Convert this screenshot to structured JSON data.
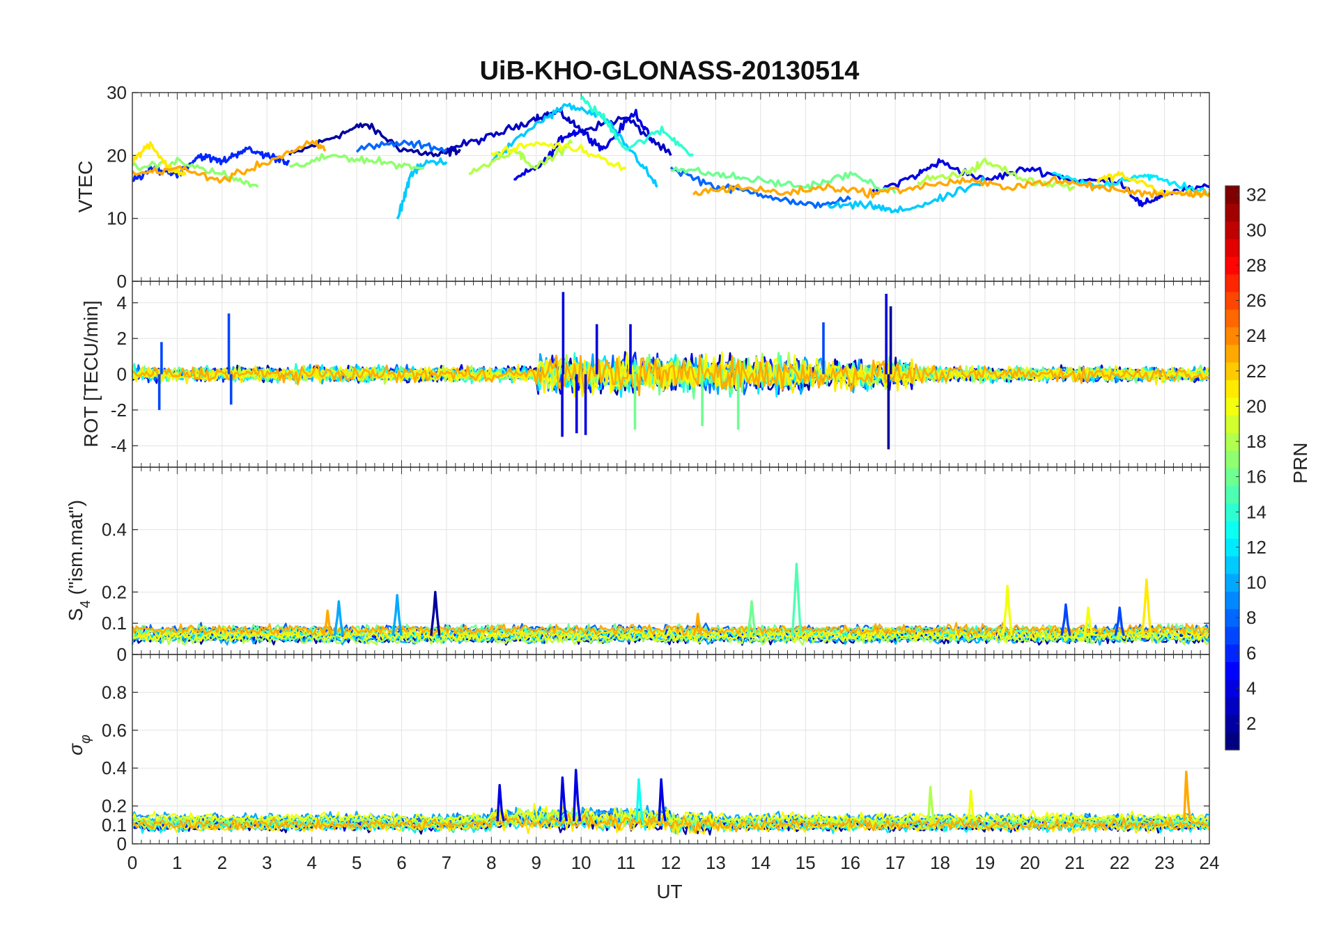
{
  "title": "UiB-KHO-GLONASS-20130514",
  "chart_data": [
    {
      "type": "line",
      "panel": "vtec",
      "ylabel": "VTEC",
      "ylim": [
        0,
        30
      ],
      "yticks": [
        0,
        10,
        20,
        30
      ],
      "ytick_labels": [
        "0",
        "10",
        "20",
        "30"
      ],
      "xlim": [
        0,
        24
      ],
      "grid": true,
      "series": [
        {
          "prn": 2,
          "x": [
            3.5,
            4.5,
            5.2,
            6.0,
            6.8,
            7.3
          ],
          "y": [
            20,
            23,
            25,
            21,
            20,
            21
          ]
        },
        {
          "prn": 3,
          "x": [
            7.0,
            8.0,
            9.0,
            9.5,
            10.0,
            11.0,
            12.0
          ],
          "y": [
            21,
            23,
            26,
            27,
            24,
            26,
            20
          ]
        },
        {
          "prn": 4,
          "x": [
            8.5,
            9.2,
            9.6,
            10.0,
            10.5,
            11.2,
            11.6
          ],
          "y": [
            16,
            19,
            23,
            24,
            21,
            27,
            22
          ]
        },
        {
          "prn": 4,
          "x": [
            16.5,
            17.5,
            18.0,
            19.0,
            20.0,
            21.0,
            22.0,
            22.5,
            23.0,
            24.0
          ],
          "y": [
            14,
            17,
            19,
            16,
            18,
            16,
            16,
            12,
            14,
            15
          ]
        },
        {
          "prn": 6,
          "x": [
            0,
            0.5,
            1.0,
            1.5,
            2.0,
            2.5,
            3.0,
            3.5
          ],
          "y": [
            16,
            18,
            17,
            20,
            19,
            21,
            20,
            19
          ]
        },
        {
          "prn": 8,
          "x": [
            5.0,
            6.0,
            7.0
          ],
          "y": [
            21,
            22,
            21
          ]
        },
        {
          "prn": 8,
          "x": [
            12.0,
            13.0,
            14.0,
            15.0,
            16.0
          ],
          "y": [
            18,
            15,
            14,
            12,
            13
          ]
        },
        {
          "prn": 11,
          "x": [
            5.9,
            6.2,
            6.6,
            7.0
          ],
          "y": [
            9.5,
            17,
            19,
            19
          ]
        },
        {
          "prn": 11,
          "x": [
            8.0,
            9.0,
            9.7,
            10.5,
            11.2,
            11.7
          ],
          "y": [
            19,
            25,
            28,
            26,
            20,
            15
          ]
        },
        {
          "prn": 11,
          "x": [
            15.5,
            16.5,
            17.0,
            18.0,
            19.0
          ],
          "y": [
            12,
            12,
            11,
            13,
            16
          ]
        },
        {
          "prn": 12,
          "x": [
            20.5,
            21.5,
            22.5,
            23.0,
            24.0
          ],
          "y": [
            17,
            15,
            17,
            16,
            14
          ]
        },
        {
          "prn": 14,
          "x": [
            10.0,
            10.5,
            11.0,
            11.8,
            12.5
          ],
          "y": [
            29,
            26,
            21,
            24,
            20
          ]
        },
        {
          "prn": 16,
          "x": [
            12.0,
            13.0,
            14.0,
            15.0,
            16.0,
            17.0
          ],
          "y": [
            18,
            17,
            16,
            15,
            17,
            14
          ]
        },
        {
          "prn": 17,
          "x": [
            0,
            1,
            2,
            2.8
          ],
          "y": [
            18,
            19,
            17,
            15
          ]
        },
        {
          "prn": 17,
          "x": [
            3.5,
            4.5,
            5.5,
            6.5
          ],
          "y": [
            18,
            20,
            19,
            18
          ]
        },
        {
          "prn": 18,
          "x": [
            7.5,
            8.5,
            9.0,
            9.8
          ],
          "y": [
            17,
            21,
            18,
            22
          ]
        },
        {
          "prn": 18,
          "x": [
            17.5,
            18.5,
            19.0,
            20.0,
            21.0
          ],
          "y": [
            16,
            17,
            19,
            16,
            15
          ]
        },
        {
          "prn": 20,
          "x": [
            8.0,
            9.0,
            10.0,
            11.0
          ],
          "y": [
            20,
            22,
            21,
            18
          ]
        },
        {
          "prn": 21,
          "x": [
            0,
            0.4,
            0.8,
            1.2
          ],
          "y": [
            19,
            22,
            18,
            17
          ]
        },
        {
          "prn": 21,
          "x": [
            21.5,
            22.0,
            23.0,
            24.0
          ],
          "y": [
            16,
            17,
            14,
            14
          ]
        },
        {
          "prn": 23,
          "x": [
            0,
            1,
            2,
            3,
            4,
            4.3
          ],
          "y": [
            17,
            18,
            16,
            19,
            22,
            21
          ]
        },
        {
          "prn": 23,
          "x": [
            12.5,
            13.5,
            14.5,
            15.5,
            16.5,
            17.5,
            18.5,
            19.5,
            20.5,
            21.5,
            22.5,
            23.5,
            24.0
          ],
          "y": [
            14,
            15,
            14,
            15,
            14,
            15,
            16,
            15,
            16,
            15,
            14,
            14,
            14
          ]
        }
      ]
    },
    {
      "type": "line",
      "panel": "rot",
      "ylabel": "ROT [TECU/min]",
      "ylim": [
        -5.2,
        5.2
      ],
      "yticks": [
        -4,
        -2,
        0,
        2,
        4
      ],
      "ytick_labels": [
        "-4",
        "-2",
        "0",
        "2",
        "4"
      ],
      "xlim": [
        0,
        24
      ],
      "grid": true,
      "spikes": [
        {
          "prn": 7,
          "x": 0.6,
          "y": -2.0
        },
        {
          "prn": 7,
          "x": 0.65,
          "y": 1.8
        },
        {
          "prn": 7,
          "x": 2.15,
          "y": 3.4
        },
        {
          "prn": 7,
          "x": 2.2,
          "y": -1.7
        },
        {
          "prn": 4,
          "x": 9.6,
          "y": 4.6
        },
        {
          "prn": 4,
          "x": 9.58,
          "y": -3.5
        },
        {
          "prn": 4,
          "x": 9.9,
          "y": -3.3
        },
        {
          "prn": 4,
          "x": 10.1,
          "y": -3.4
        },
        {
          "prn": 4,
          "x": 10.35,
          "y": 2.8
        },
        {
          "prn": 4,
          "x": 11.1,
          "y": 2.8
        },
        {
          "prn": 16,
          "x": 11.2,
          "y": -3.1
        },
        {
          "prn": 16,
          "x": 12.7,
          "y": -2.9
        },
        {
          "prn": 16,
          "x": 13.5,
          "y": -3.1
        },
        {
          "prn": 7,
          "x": 15.4,
          "y": 2.9
        },
        {
          "prn": 4,
          "x": 16.8,
          "y": 4.5
        },
        {
          "prn": 2,
          "x": 16.85,
          "y": -4.2
        },
        {
          "prn": 2,
          "x": 16.9,
          "y": 3.8
        }
      ]
    },
    {
      "type": "line",
      "panel": "s4",
      "ylabel": "S4 (\"ism.mat\")",
      "ylim": [
        0,
        0.6
      ],
      "yticks": [
        0,
        0.1,
        0.2,
        0.4
      ],
      "ytick_labels": [
        "0",
        "0.1",
        "0.2",
        "0.4"
      ],
      "xlim": [
        0,
        24
      ],
      "grid": true,
      "spikes": [
        {
          "prn": 23,
          "x": 4.35,
          "y": 0.14
        },
        {
          "prn": 10,
          "x": 4.6,
          "y": 0.17
        },
        {
          "prn": 10,
          "x": 5.9,
          "y": 0.19
        },
        {
          "prn": 2,
          "x": 6.75,
          "y": 0.2
        },
        {
          "prn": 23,
          "x": 12.6,
          "y": 0.13
        },
        {
          "prn": 16,
          "x": 13.8,
          "y": 0.17
        },
        {
          "prn": 15,
          "x": 14.8,
          "y": 0.29
        },
        {
          "prn": 20,
          "x": 19.5,
          "y": 0.22
        },
        {
          "prn": 7,
          "x": 20.8,
          "y": 0.16
        },
        {
          "prn": 20,
          "x": 21.3,
          "y": 0.15
        },
        {
          "prn": 7,
          "x": 22.0,
          "y": 0.15
        },
        {
          "prn": 21,
          "x": 22.6,
          "y": 0.24
        }
      ]
    },
    {
      "type": "line",
      "panel": "sigma_phi",
      "ylabel": "σφ",
      "ylim": [
        0,
        1
      ],
      "yticks": [
        0,
        0.1,
        0.2,
        0.4,
        0.6,
        0.8
      ],
      "ytick_labels": [
        "0",
        "0.1",
        "0.2",
        "0.4",
        "0.6",
        "0.8"
      ],
      "xlim": [
        0,
        24
      ],
      "xticks": [
        0,
        1,
        2,
        3,
        4,
        5,
        6,
        7,
        8,
        9,
        10,
        11,
        12,
        13,
        14,
        15,
        16,
        17,
        18,
        19,
        20,
        21,
        22,
        23,
        24
      ],
      "xtick_labels": [
        "0",
        "1",
        "2",
        "3",
        "4",
        "5",
        "6",
        "7",
        "8",
        "9",
        "10",
        "11",
        "12",
        "13",
        "14",
        "15",
        "16",
        "17",
        "18",
        "19",
        "20",
        "21",
        "22",
        "23",
        "24"
      ],
      "xlabel": "UT",
      "grid": true,
      "spikes": [
        {
          "prn": 4,
          "x": 8.2,
          "y": 0.31
        },
        {
          "prn": 4,
          "x": 9.6,
          "y": 0.35
        },
        {
          "prn": 4,
          "x": 9.9,
          "y": 0.39
        },
        {
          "prn": 13,
          "x": 11.3,
          "y": 0.34
        },
        {
          "prn": 4,
          "x": 11.8,
          "y": 0.34
        },
        {
          "prn": 18,
          "x": 17.8,
          "y": 0.3
        },
        {
          "prn": 20,
          "x": 18.7,
          "y": 0.28
        },
        {
          "prn": 23,
          "x": 23.5,
          "y": 0.38
        }
      ]
    },
    {
      "type": "colorbar",
      "label": "PRN",
      "range": [
        1,
        32
      ],
      "ticks": [
        2,
        4,
        6,
        8,
        10,
        12,
        14,
        16,
        18,
        20,
        22,
        24,
        26,
        28,
        30,
        32
      ],
      "tick_labels": [
        "2",
        "4",
        "6",
        "8",
        "10",
        "12",
        "14",
        "16",
        "18",
        "20",
        "22",
        "24",
        "26",
        "28",
        "30",
        "32"
      ],
      "colormap": "jet"
    }
  ]
}
